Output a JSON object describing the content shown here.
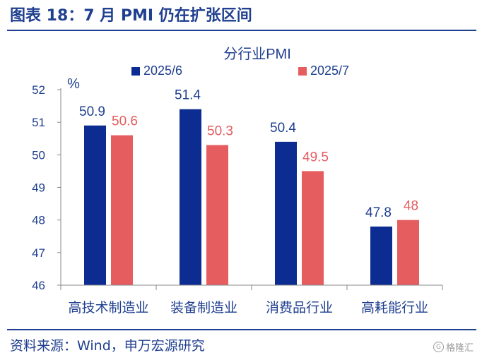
{
  "header": {
    "title": "图表 18：7 月 PMI 仍在扩张区间"
  },
  "footer": {
    "source": "资料来源：Wind，申万宏源研究"
  },
  "watermark": {
    "text": "格隆汇",
    "logo": "G"
  },
  "colors": {
    "brand": "#1f3f8f",
    "series1": "#0c2c92",
    "series2": "#e55d5f",
    "axis": "#888888"
  },
  "chart_data": {
    "type": "bar",
    "title": "分行业PMI",
    "ylabel": "%",
    "xlabel": "",
    "ylim": [
      46,
      52
    ],
    "yticks": [
      "46",
      "47",
      "48",
      "49",
      "50",
      "51",
      "52"
    ],
    "categories": [
      "高技术制造业",
      "装备制造业",
      "消费品行业",
      "高耗能行业"
    ],
    "series": [
      {
        "name": "2025/6",
        "values": [
          50.9,
          51.4,
          50.4,
          47.8
        ],
        "labels": [
          "50.9",
          "51.4",
          "50.4",
          "47.8"
        ]
      },
      {
        "name": "2025/7",
        "values": [
          50.6,
          50.3,
          49.5,
          48.0
        ],
        "labels": [
          "50.6",
          "50.3",
          "49.5",
          "48"
        ]
      }
    ]
  }
}
